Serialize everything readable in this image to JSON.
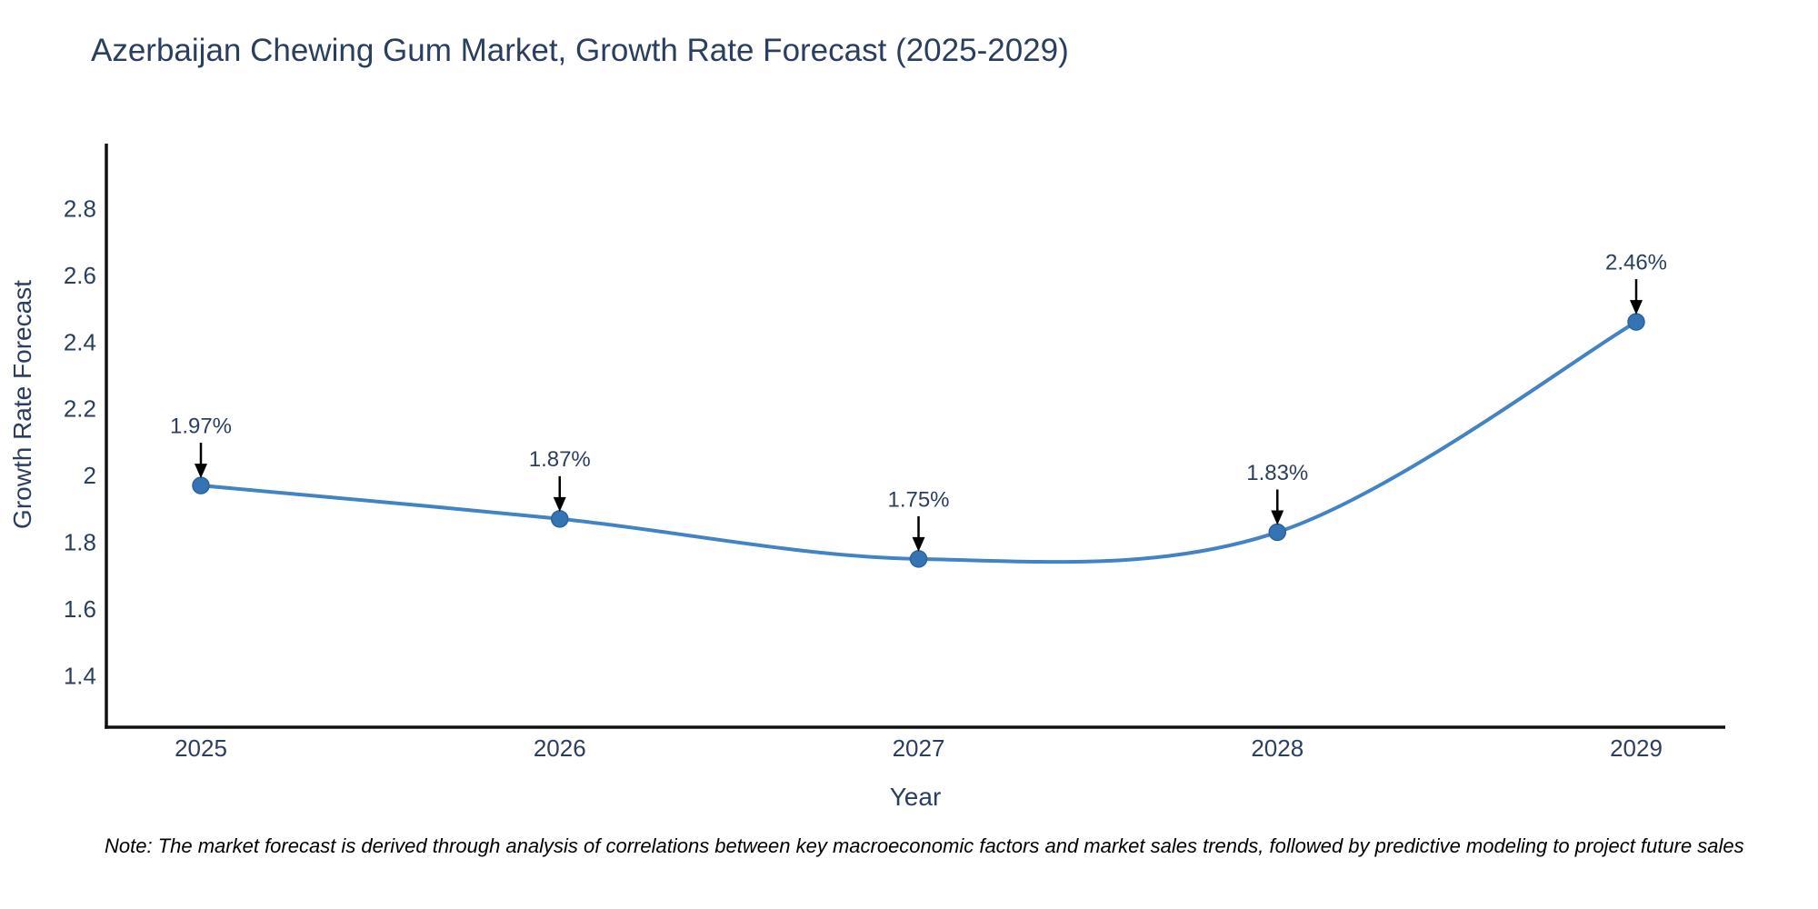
{
  "figure": {
    "title": "Azerbaijan Chewing Gum Market, Growth Rate Forecast (2025-2029)",
    "note": "Note: The market forecast is derived through analysis of correlations between key macroeconomic factors and market sales trends, followed by predictive modeling to project future sales"
  },
  "chart_data": {
    "type": "line",
    "title": "Azerbaijan Chewing Gum Market, Growth Rate Forecast (2025-2029)",
    "xlabel": "Year",
    "ylabel": "Growth Rate Forecast",
    "categories": [
      "2025",
      "2026",
      "2027",
      "2028",
      "2029"
    ],
    "x": [
      2025,
      2026,
      2027,
      2028,
      2029
    ],
    "values": [
      1.97,
      1.87,
      1.75,
      1.83,
      2.46
    ],
    "point_labels": [
      "1.97%",
      "1.87%",
      "1.75%",
      "1.83%",
      "2.46%"
    ],
    "yticks": [
      1.4,
      1.6,
      1.8,
      2,
      2.2,
      2.4,
      2.6,
      2.8
    ],
    "ytick_labels": [
      "1.4",
      "1.6",
      "1.8",
      "2",
      "2.2",
      "2.4",
      "2.6",
      "2.8"
    ],
    "ylim": [
      1.246,
      2.994
    ],
    "grid": false,
    "legend": "none",
    "line_shape": "spline",
    "marker_size": 18,
    "colors": {
      "line": "#4183c4",
      "marker": "#3474b4",
      "marker_edge": "#2c639a",
      "axis": "#111111",
      "text": "#2a3f5f",
      "annotation_arrow": "#000000"
    }
  }
}
